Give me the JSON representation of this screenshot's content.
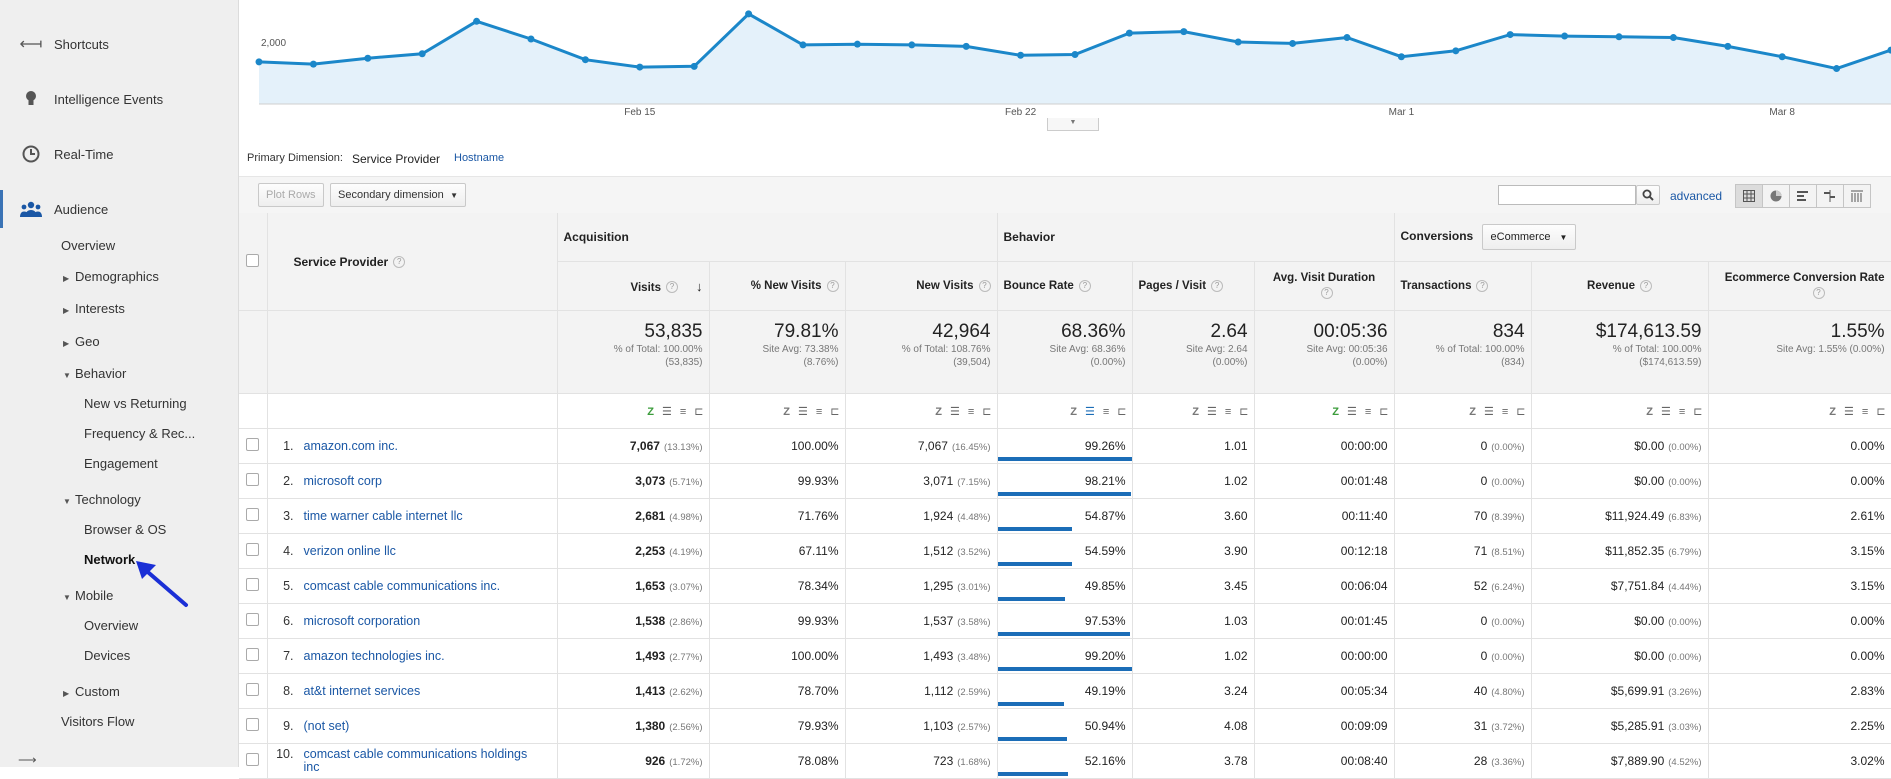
{
  "sidebar": {
    "top": [
      {
        "label": "Shortcuts",
        "icon": "shortcuts-icon"
      },
      {
        "label": "Intelligence Events",
        "icon": "lightbulb-icon"
      },
      {
        "label": "Real-Time",
        "icon": "clock-icon"
      },
      {
        "label": "Audience",
        "icon": "people-icon"
      }
    ],
    "audience_items": {
      "overview": "Overview",
      "demographics": "Demographics",
      "interests": "Interests",
      "geo": "Geo",
      "behavior": "Behavior",
      "new_vs_returning": "New vs Returning",
      "frequency": "Frequency & Rec...",
      "engagement": "Engagement",
      "technology": "Technology",
      "browser_os": "Browser & OS",
      "network": "Network",
      "mobile": "Mobile",
      "mobile_overview": "Overview",
      "devices": "Devices",
      "custom": "Custom",
      "visitors_flow": "Visitors Flow"
    }
  },
  "chart_data": {
    "type": "area",
    "y_tick_label": "2,000",
    "x_tick_labels": [
      "Feb 15",
      "Feb 22",
      "Mar 1",
      "Mar 8"
    ],
    "values": [
      1985,
      1970,
      2010,
      2040,
      2260,
      2140,
      2000,
      1950,
      1955,
      2310,
      2100,
      2105,
      2100,
      2090,
      2030,
      2035,
      2180,
      2190,
      2120,
      2110,
      2150,
      2020,
      2060,
      2170,
      2160,
      2155,
      2150,
      2090,
      2020,
      1940,
      2065
    ],
    "ylim": [
      1700,
      2350
    ],
    "color": "#1b87c9"
  },
  "dimensions": {
    "label": "Primary Dimension:",
    "active": "Service Provider",
    "other": "Hostname"
  },
  "toolbar": {
    "plot_rows": "Plot Rows",
    "secondary_dimension": "Secondary dimension",
    "search_placeholder": "",
    "advanced": "advanced"
  },
  "table": {
    "service_provider_header": "Service Provider",
    "groups": {
      "acquisition": "Acquisition",
      "behavior": "Behavior",
      "conversions": "Conversions",
      "ecommerce_select": "eCommerce"
    },
    "columns": {
      "visits": "Visits",
      "pct_new_visits": "% New Visits",
      "new_visits": "New Visits",
      "bounce_rate": "Bounce Rate",
      "pages_visit": "Pages / Visit",
      "avg_duration": "Avg. Visit Duration",
      "transactions": "Transactions",
      "revenue": "Revenue",
      "conv_rate": "Ecommerce Conversion Rate"
    },
    "totals": {
      "visits": {
        "big": "53,835",
        "l1": "% of Total: 100.00%",
        "l2": "(53,835)"
      },
      "pct_new_visits": {
        "big": "79.81%",
        "l1": "Site Avg: 73.38%",
        "l2": "(8.76%)"
      },
      "new_visits": {
        "big": "42,964",
        "l1": "% of Total: 108.76%",
        "l2": "(39,504)"
      },
      "bounce_rate": {
        "big": "68.36%",
        "l1": "Site Avg: 68.36%",
        "l2": "(0.00%)"
      },
      "pages_visit": {
        "big": "2.64",
        "l1": "Site Avg: 2.64",
        "l2": "(0.00%)"
      },
      "avg_duration": {
        "big": "00:05:36",
        "l1": "Site Avg: 00:05:36",
        "l2": "(0.00%)"
      },
      "transactions": {
        "big": "834",
        "l1": "% of Total: 100.00%",
        "l2": "(834)"
      },
      "revenue": {
        "big": "$174,613.59",
        "l1": "% of Total: 100.00%",
        "l2": "($174,613.59)"
      },
      "conv_rate": {
        "big": "1.55%",
        "l1": "Site Avg: 1.55% (0.00%)",
        "l2": ""
      }
    },
    "rows": [
      {
        "idx": "1.",
        "name": "amazon.com inc.",
        "visits": "7,067",
        "visits_pct": "(13.13%)",
        "pnv": "100.00%",
        "nv": "7,067",
        "nv_pct": "(16.45%)",
        "br": "99.26%",
        "br_val": 99.26,
        "pv": "1.01",
        "dur": "00:00:00",
        "tr": "0",
        "tr_pct": "(0.00%)",
        "rev": "$0.00",
        "rev_pct": "(0.00%)",
        "cr": "0.00%"
      },
      {
        "idx": "2.",
        "name": "microsoft corp",
        "visits": "3,073",
        "visits_pct": "(5.71%)",
        "pnv": "99.93%",
        "nv": "3,071",
        "nv_pct": "(7.15%)",
        "br": "98.21%",
        "br_val": 98.21,
        "pv": "1.02",
        "dur": "00:01:48",
        "tr": "0",
        "tr_pct": "(0.00%)",
        "rev": "$0.00",
        "rev_pct": "(0.00%)",
        "cr": "0.00%"
      },
      {
        "idx": "3.",
        "name": "time warner cable internet llc",
        "visits": "2,681",
        "visits_pct": "(4.98%)",
        "pnv": "71.76%",
        "nv": "1,924",
        "nv_pct": "(4.48%)",
        "br": "54.87%",
        "br_val": 54.87,
        "pv": "3.60",
        "dur": "00:11:40",
        "tr": "70",
        "tr_pct": "(8.39%)",
        "rev": "$11,924.49",
        "rev_pct": "(6.83%)",
        "cr": "2.61%"
      },
      {
        "idx": "4.",
        "name": "verizon online llc",
        "visits": "2,253",
        "visits_pct": "(4.19%)",
        "pnv": "67.11%",
        "nv": "1,512",
        "nv_pct": "(3.52%)",
        "br": "54.59%",
        "br_val": 54.59,
        "pv": "3.90",
        "dur": "00:12:18",
        "tr": "71",
        "tr_pct": "(8.51%)",
        "rev": "$11,852.35",
        "rev_pct": "(6.79%)",
        "cr": "3.15%"
      },
      {
        "idx": "5.",
        "name": "comcast cable communications inc.",
        "visits": "1,653",
        "visits_pct": "(3.07%)",
        "pnv": "78.34%",
        "nv": "1,295",
        "nv_pct": "(3.01%)",
        "br": "49.85%",
        "br_val": 49.85,
        "pv": "3.45",
        "dur": "00:06:04",
        "tr": "52",
        "tr_pct": "(6.24%)",
        "rev": "$7,751.84",
        "rev_pct": "(4.44%)",
        "cr": "3.15%"
      },
      {
        "idx": "6.",
        "name": "microsoft corporation",
        "visits": "1,538",
        "visits_pct": "(2.86%)",
        "pnv": "99.93%",
        "nv": "1,537",
        "nv_pct": "(3.58%)",
        "br": "97.53%",
        "br_val": 97.53,
        "pv": "1.03",
        "dur": "00:01:45",
        "tr": "0",
        "tr_pct": "(0.00%)",
        "rev": "$0.00",
        "rev_pct": "(0.00%)",
        "cr": "0.00%"
      },
      {
        "idx": "7.",
        "name": "amazon technologies inc.",
        "visits": "1,493",
        "visits_pct": "(2.77%)",
        "pnv": "100.00%",
        "nv": "1,493",
        "nv_pct": "(3.48%)",
        "br": "99.20%",
        "br_val": 99.2,
        "pv": "1.02",
        "dur": "00:00:00",
        "tr": "0",
        "tr_pct": "(0.00%)",
        "rev": "$0.00",
        "rev_pct": "(0.00%)",
        "cr": "0.00%"
      },
      {
        "idx": "8.",
        "name": "at&t internet services",
        "visits": "1,413",
        "visits_pct": "(2.62%)",
        "pnv": "78.70%",
        "nv": "1,112",
        "nv_pct": "(2.59%)",
        "br": "49.19%",
        "br_val": 49.19,
        "pv": "3.24",
        "dur": "00:05:34",
        "tr": "40",
        "tr_pct": "(4.80%)",
        "rev": "$5,699.91",
        "rev_pct": "(3.26%)",
        "cr": "2.83%"
      },
      {
        "idx": "9.",
        "name": "(not set)",
        "visits": "1,380",
        "visits_pct": "(2.56%)",
        "pnv": "79.93%",
        "nv": "1,103",
        "nv_pct": "(2.57%)",
        "br": "50.94%",
        "br_val": 50.94,
        "pv": "4.08",
        "dur": "00:09:09",
        "tr": "31",
        "tr_pct": "(3.72%)",
        "rev": "$5,285.91",
        "rev_pct": "(3.03%)",
        "cr": "2.25%"
      },
      {
        "idx": "10.",
        "name": "comcast cable communications holdings inc",
        "visits": "926",
        "visits_pct": "(1.72%)",
        "pnv": "78.08%",
        "nv": "723",
        "nv_pct": "(1.68%)",
        "br": "52.16%",
        "br_val": 52.16,
        "pv": "3.78",
        "dur": "00:08:40",
        "tr": "28",
        "tr_pct": "(3.36%)",
        "rev": "$7,889.90",
        "rev_pct": "(4.52%)",
        "cr": "3.02%"
      }
    ]
  }
}
